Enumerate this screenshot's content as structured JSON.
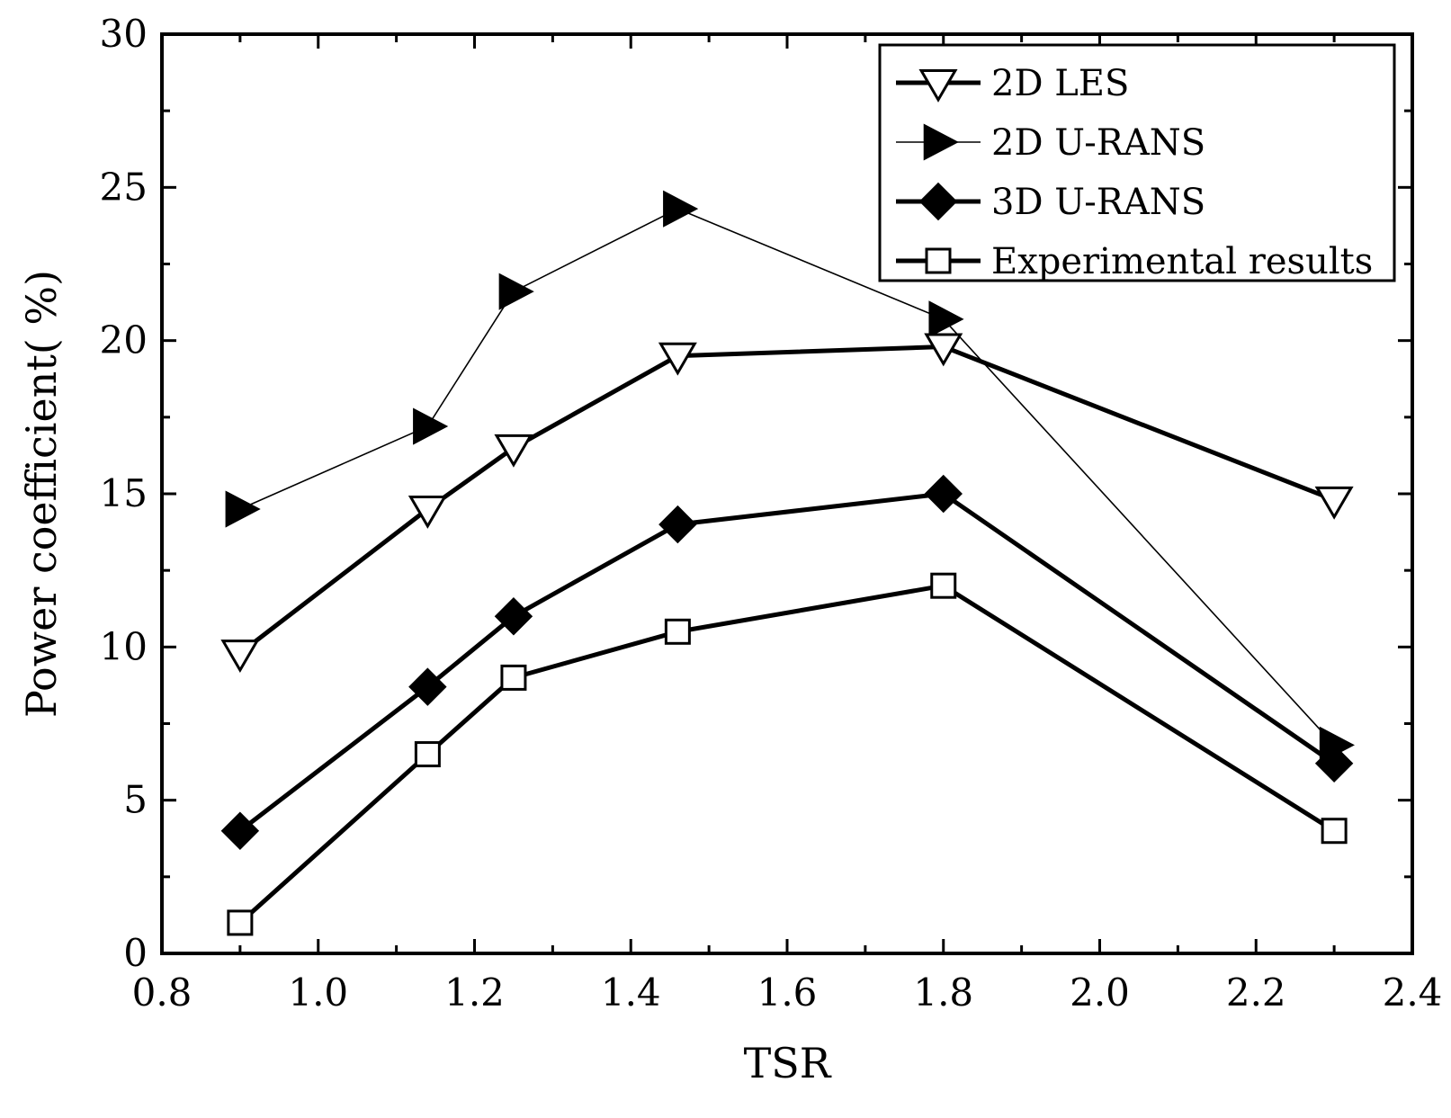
{
  "chart_data": {
    "type": "line",
    "title": "",
    "xlabel": "TSR",
    "ylabel": "Power coefficient( %)",
    "xlim": [
      0.8,
      2.4
    ],
    "ylim": [
      0,
      30
    ],
    "x_ticks": [
      "0.8",
      "1.0",
      "1.2",
      "1.4",
      "1.6",
      "1.8",
      "2.0",
      "2.2",
      "2.4"
    ],
    "y_ticks": [
      "0",
      "5",
      "10",
      "15",
      "20",
      "25",
      "30"
    ],
    "grid": false,
    "legend_position": "top-right",
    "series": [
      {
        "name": "2D LES",
        "marker": "triangle-down-open",
        "line": "thick",
        "x": [
          0.9,
          1.14,
          1.25,
          1.46,
          1.8,
          2.3
        ],
        "values": [
          9.8,
          14.5,
          16.5,
          19.5,
          19.8,
          14.8
        ]
      },
      {
        "name": "2D U-RANS",
        "marker": "triangle-right-filled",
        "line": "thin",
        "x": [
          0.9,
          1.14,
          1.25,
          1.46,
          1.8,
          2.3
        ],
        "values": [
          14.5,
          17.2,
          21.6,
          24.3,
          20.7,
          6.8
        ]
      },
      {
        "name": "3D U-RANS",
        "marker": "diamond-filled",
        "line": "thick",
        "x": [
          0.9,
          1.14,
          1.25,
          1.46,
          1.8,
          2.3
        ],
        "values": [
          4.0,
          8.7,
          11.0,
          14.0,
          15.0,
          6.2
        ]
      },
      {
        "name": "Experimental results",
        "marker": "square-open",
        "line": "thick",
        "x": [
          0.9,
          1.14,
          1.25,
          1.46,
          1.8,
          2.3
        ],
        "values": [
          1.0,
          6.5,
          9.0,
          10.5,
          12.0,
          4.0
        ]
      }
    ]
  }
}
